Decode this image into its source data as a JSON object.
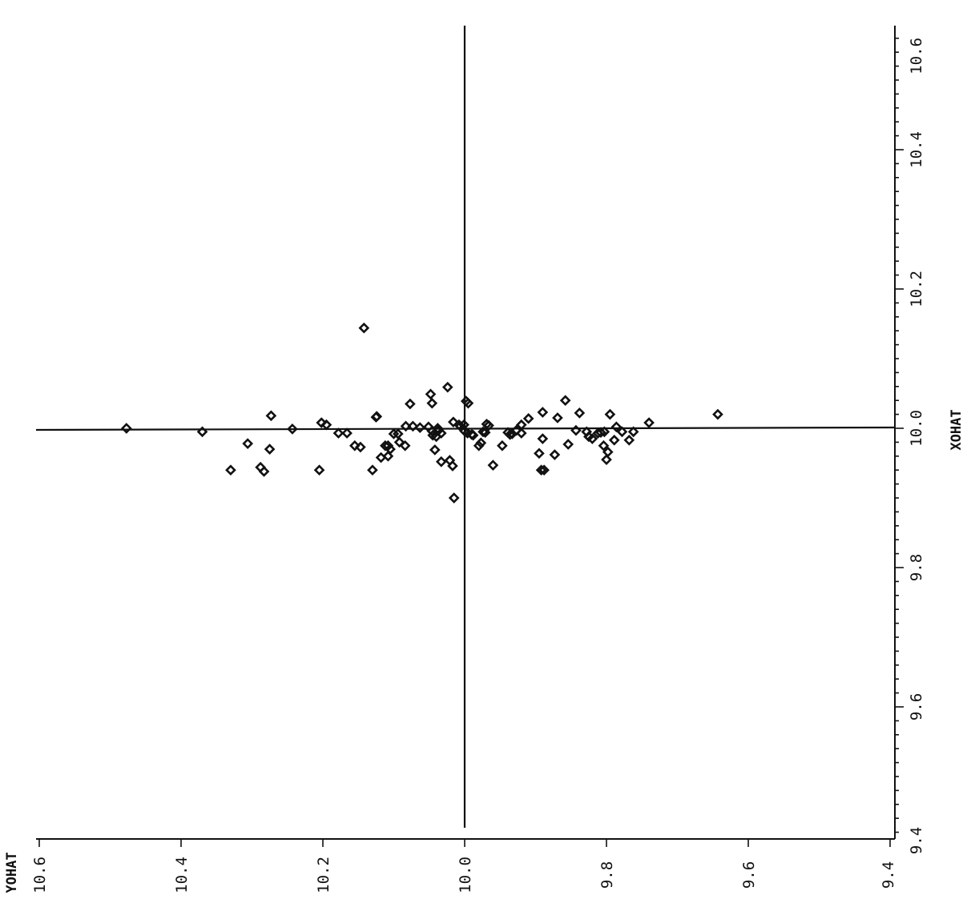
{
  "chart_data": {
    "type": "scatter",
    "title": "",
    "xlabel": "XOHAT",
    "ylabel": "YOHAT",
    "xlim": [
      9.4,
      10.6
    ],
    "ylim": [
      9.4,
      10.6
    ],
    "xticks": [
      "9.4",
      "9.6",
      "9.8",
      "10.0",
      "10.2",
      "10.4",
      "10.6"
    ],
    "yticks": [
      "10.6",
      "10.4",
      "10.2",
      "10.0",
      "9.8",
      "9.6",
      "9.4"
    ],
    "grid": false,
    "reference_lines": {
      "x": 10.0,
      "y": 10.0
    },
    "colors": {
      "ink": "#111111",
      "background": "#ffffff"
    },
    "points": [
      {
        "x": 10.0,
        "y": 10.477
      },
      {
        "x": 9.995,
        "y": 10.37
      },
      {
        "x": 9.978,
        "y": 10.306
      },
      {
        "x": 9.97,
        "y": 10.275
      },
      {
        "x": 10.018,
        "y": 10.273
      },
      {
        "x": 9.999,
        "y": 10.243
      },
      {
        "x": 10.008,
        "y": 10.202
      },
      {
        "x": 10.005,
        "y": 10.195
      },
      {
        "x": 9.944,
        "y": 10.288
      },
      {
        "x": 9.94,
        "y": 10.33
      },
      {
        "x": 9.938,
        "y": 10.283
      },
      {
        "x": 9.94,
        "y": 10.205
      },
      {
        "x": 9.993,
        "y": 10.178
      },
      {
        "x": 9.993,
        "y": 10.166
      },
      {
        "x": 9.975,
        "y": 10.155
      },
      {
        "x": 9.973,
        "y": 10.147
      },
      {
        "x": 9.94,
        "y": 10.13
      },
      {
        "x": 9.975,
        "y": 10.108
      },
      {
        "x": 9.96,
        "y": 10.108
      },
      {
        "x": 9.975,
        "y": 10.112
      },
      {
        "x": 9.992,
        "y": 10.1
      },
      {
        "x": 9.992,
        "y": 10.094
      },
      {
        "x": 9.98,
        "y": 10.092
      },
      {
        "x": 9.958,
        "y": 10.118
      },
      {
        "x": 9.97,
        "y": 10.105
      },
      {
        "x": 9.975,
        "y": 10.084
      },
      {
        "x": 10.016,
        "y": 10.125
      },
      {
        "x": 10.017,
        "y": 10.124
      },
      {
        "x": 10.003,
        "y": 10.083
      },
      {
        "x": 10.003,
        "y": 10.073
      },
      {
        "x": 10.035,
        "y": 10.077
      },
      {
        "x": 10.001,
        "y": 10.063
      },
      {
        "x": 10.002,
        "y": 10.051
      },
      {
        "x": 9.996,
        "y": 10.046
      },
      {
        "x": 9.988,
        "y": 10.04
      },
      {
        "x": 9.997,
        "y": 10.037
      },
      {
        "x": 10.049,
        "y": 10.048
      },
      {
        "x": 10.036,
        "y": 10.046
      },
      {
        "x": 9.993,
        "y": 10.033
      },
      {
        "x": 10.0,
        "y": 10.038
      },
      {
        "x": 9.99,
        "y": 10.045
      },
      {
        "x": 9.969,
        "y": 10.042
      },
      {
        "x": 9.952,
        "y": 10.033
      },
      {
        "x": 10.059,
        "y": 10.024
      },
      {
        "x": 10.009,
        "y": 10.016
      },
      {
        "x": 10.005,
        "y": 10.008
      },
      {
        "x": 10.003,
        "y": 10.006
      },
      {
        "x": 9.954,
        "y": 10.021
      },
      {
        "x": 9.946,
        "y": 10.017
      },
      {
        "x": 9.9,
        "y": 10.015
      },
      {
        "x": 10.144,
        "y": 10.142
      },
      {
        "x": 10.005,
        "y": 10.001
      },
      {
        "x": 9.996,
        "y": 10.0
      },
      {
        "x": 9.993,
        "y": 9.996
      },
      {
        "x": 9.991,
        "y": 9.99
      },
      {
        "x": 9.99,
        "y": 9.988
      },
      {
        "x": 10.039,
        "y": 9.998
      },
      {
        "x": 10.036,
        "y": 9.995
      },
      {
        "x": 9.975,
        "y": 9.98
      },
      {
        "x": 9.979,
        "y": 9.977
      },
      {
        "x": 9.995,
        "y": 9.974
      },
      {
        "x": 9.994,
        "y": 9.971
      },
      {
        "x": 10.006,
        "y": 9.969
      },
      {
        "x": 10.004,
        "y": 9.966
      },
      {
        "x": 9.947,
        "y": 9.96
      },
      {
        "x": 9.975,
        "y": 9.947
      },
      {
        "x": 9.994,
        "y": 9.939
      },
      {
        "x": 9.991,
        "y": 9.936
      },
      {
        "x": 9.992,
        "y": 9.933
      },
      {
        "x": 9.997,
        "y": 9.927
      },
      {
        "x": 9.993,
        "y": 9.92
      },
      {
        "x": 10.005,
        "y": 9.92
      },
      {
        "x": 10.014,
        "y": 9.91
      },
      {
        "x": 10.023,
        "y": 9.89
      },
      {
        "x": 9.964,
        "y": 9.895
      },
      {
        "x": 9.94,
        "y": 9.892
      },
      {
        "x": 9.94,
        "y": 9.888
      },
      {
        "x": 9.985,
        "y": 9.89
      },
      {
        "x": 9.962,
        "y": 9.873
      },
      {
        "x": 10.015,
        "y": 9.869
      },
      {
        "x": 10.04,
        "y": 9.858
      },
      {
        "x": 9.977,
        "y": 9.854
      },
      {
        "x": 9.997,
        "y": 9.843
      },
      {
        "x": 10.022,
        "y": 9.838
      },
      {
        "x": 9.995,
        "y": 9.828
      },
      {
        "x": 9.988,
        "y": 9.825
      },
      {
        "x": 9.985,
        "y": 9.82
      },
      {
        "x": 9.993,
        "y": 9.812
      },
      {
        "x": 9.994,
        "y": 9.808
      },
      {
        "x": 9.975,
        "y": 9.804
      },
      {
        "x": 9.995,
        "y": 9.803
      },
      {
        "x": 9.955,
        "y": 9.8
      },
      {
        "x": 10.02,
        "y": 9.795
      },
      {
        "x": 9.983,
        "y": 9.789
      },
      {
        "x": 10.002,
        "y": 9.786
      },
      {
        "x": 9.995,
        "y": 9.778
      },
      {
        "x": 9.966,
        "y": 9.798
      },
      {
        "x": 9.995,
        "y": 9.762
      },
      {
        "x": 9.983,
        "y": 9.768
      },
      {
        "x": 10.008,
        "y": 9.74
      },
      {
        "x": 10.02,
        "y": 9.643
      }
    ]
  }
}
